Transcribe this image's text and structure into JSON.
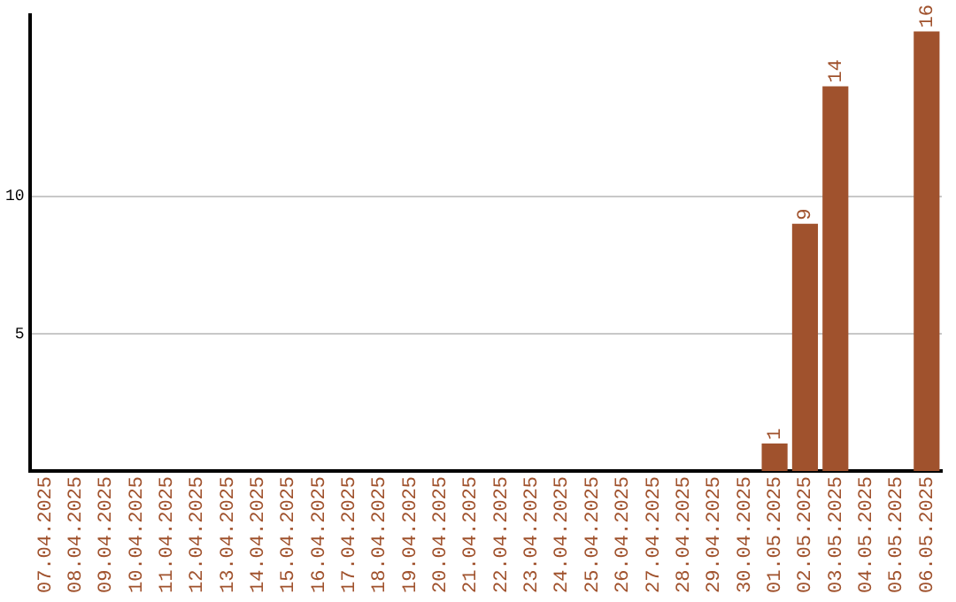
{
  "chart_data": {
    "type": "bar",
    "categories": [
      "07.04.2025",
      "08.04.2025",
      "09.04.2025",
      "10.04.2025",
      "11.04.2025",
      "12.04.2025",
      "13.04.2025",
      "14.04.2025",
      "15.04.2025",
      "16.04.2025",
      "17.04.2025",
      "18.04.2025",
      "19.04.2025",
      "20.04.2025",
      "21.04.2025",
      "22.04.2025",
      "23.04.2025",
      "24.04.2025",
      "25.04.2025",
      "26.04.2025",
      "27.04.2025",
      "28.04.2025",
      "29.04.2025",
      "30.04.2025",
      "01.05.2025",
      "02.05.2025",
      "03.05.2025",
      "04.05.2025",
      "05.05.2025",
      "06.05.2025"
    ],
    "values": [
      0,
      0,
      0,
      0,
      0,
      0,
      0,
      0,
      0,
      0,
      0,
      0,
      0,
      0,
      0,
      0,
      0,
      0,
      0,
      0,
      0,
      0,
      0,
      0,
      1,
      9,
      14,
      0,
      0,
      16
    ],
    "value_labels": [
      null,
      null,
      null,
      null,
      null,
      null,
      null,
      null,
      null,
      null,
      null,
      null,
      null,
      null,
      null,
      null,
      null,
      null,
      null,
      null,
      null,
      null,
      null,
      null,
      "1",
      "9",
      "14",
      null,
      null,
      "16"
    ],
    "color": "#a0522d",
    "ylim": [
      0,
      16.6
    ],
    "yticks": [
      5,
      10
    ],
    "grid": "y",
    "legend": false
  }
}
